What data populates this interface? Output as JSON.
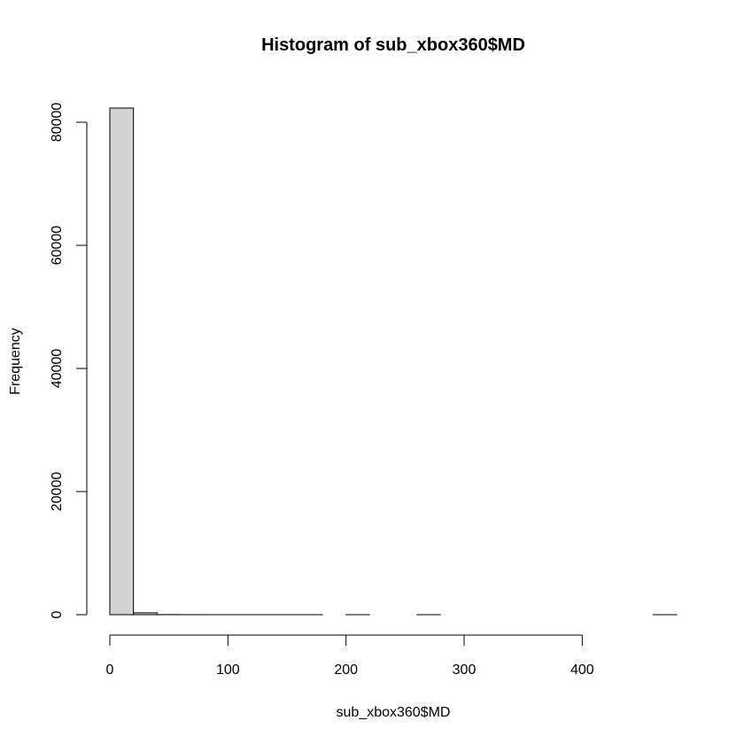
{
  "chart_data": {
    "type": "bar",
    "title": "Histogram of sub_xbox360$MD",
    "xlabel": "sub_xbox360$MD",
    "ylabel": "Frequency",
    "bin_width": 20,
    "bins": [
      {
        "start": 0,
        "end": 20,
        "count": 82300
      },
      {
        "start": 20,
        "end": 40,
        "count": 300
      },
      {
        "start": 40,
        "end": 60,
        "count": 20
      },
      {
        "start": 60,
        "end": 80,
        "count": 5
      },
      {
        "start": 80,
        "end": 100,
        "count": 3
      },
      {
        "start": 100,
        "end": 120,
        "count": 2
      },
      {
        "start": 120,
        "end": 140,
        "count": 1
      },
      {
        "start": 140,
        "end": 160,
        "count": 1
      },
      {
        "start": 160,
        "end": 180,
        "count": 1
      },
      {
        "start": 180,
        "end": 200,
        "count": 0
      },
      {
        "start": 200,
        "end": 220,
        "count": 1
      },
      {
        "start": 220,
        "end": 240,
        "count": 0
      },
      {
        "start": 240,
        "end": 260,
        "count": 0
      },
      {
        "start": 260,
        "end": 280,
        "count": 1
      },
      {
        "start": 280,
        "end": 300,
        "count": 0
      },
      {
        "start": 300,
        "end": 320,
        "count": 0
      },
      {
        "start": 320,
        "end": 340,
        "count": 0
      },
      {
        "start": 340,
        "end": 360,
        "count": 0
      },
      {
        "start": 360,
        "end": 380,
        "count": 0
      },
      {
        "start": 380,
        "end": 400,
        "count": 0
      },
      {
        "start": 400,
        "end": 420,
        "count": 0
      },
      {
        "start": 420,
        "end": 440,
        "count": 0
      },
      {
        "start": 440,
        "end": 460,
        "count": 0
      },
      {
        "start": 460,
        "end": 480,
        "count": 1
      }
    ],
    "xlim": [
      0,
      480
    ],
    "ylim": [
      0,
      82300
    ],
    "x_ticks": [
      0,
      100,
      200,
      300,
      400
    ],
    "y_ticks": [
      0,
      20000,
      40000,
      60000,
      80000
    ],
    "x_tick_labels": [
      "0",
      "100",
      "200",
      "300",
      "400"
    ],
    "y_tick_labels": [
      "0",
      "20000",
      "40000",
      "60000",
      "80000"
    ],
    "bar_color": "#d3d3d3",
    "grid": false,
    "legend": "none"
  }
}
